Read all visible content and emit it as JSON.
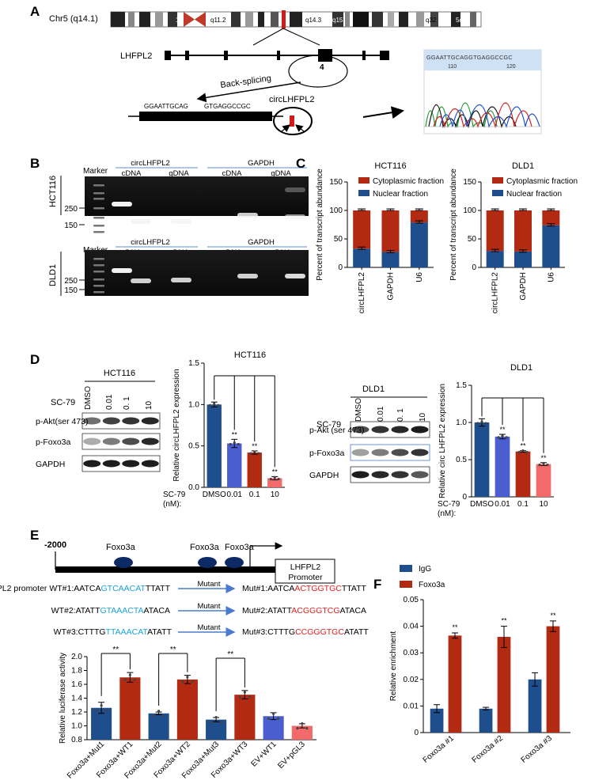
{
  "panels": {
    "A": {
      "letter": "A",
      "chromosome_label": "Chr5 (q14.1)",
      "band_labels": [
        "12",
        "q11.2",
        "q14.3",
        "q15",
        "q32",
        "5q34"
      ],
      "gene_label": "LHFPL2",
      "exon_label": "4",
      "back_splicing_label": "Back-splicing",
      "junction_left_seq": "GGAATTGCAG",
      "junction_right_seq": "GTGAGGCCGC",
      "circ_label": "circLHFPL2",
      "sanger_seq": "GGAATTGCAGGTGAGGCCGC",
      "sanger_ticks": [
        "110",
        "120"
      ]
    },
    "B": {
      "letter": "B",
      "marker_label": "Marker",
      "group_labels": [
        "circLHFPL2",
        "GAPDH"
      ],
      "template_labels": [
        "cDNA",
        "gDNA"
      ],
      "cell_lines": [
        "HCT116",
        "DLD1"
      ],
      "size_labels": [
        "250",
        "150"
      ]
    },
    "C": {
      "letter": "C",
      "ylabel": "Percent of transcript abundance",
      "legend": [
        "Cytoplasmic fraction",
        "Nuclear fraction"
      ]
    },
    "D": {
      "letter": "D",
      "sc79_label": "SC-79",
      "blot_doses": [
        "DMSO",
        "0.01",
        "0. 1",
        "10"
      ],
      "dlddoses": [
        "DMSO",
        "0.01",
        "0. 1",
        "10"
      ],
      "proteins": [
        "p-Akt(ser 473)",
        "p-Foxo3a",
        "GAPDH"
      ],
      "proteins_dld1": [
        "p-Akt (ser 473)",
        "p-Foxo3a",
        "GAPDH"
      ],
      "blot_titles": [
        "HCT116",
        "DLD1"
      ],
      "sc79_axis_label": "SC-79",
      "nm_label": "(nM):"
    },
    "E": {
      "letter": "E",
      "promoter_start": "-2000",
      "tf_label": "Foxo3a",
      "promoter_box": [
        "LHFPL2",
        "Promoter"
      ],
      "mutant_label": "Mutant",
      "sites": [
        {
          "wt_prefix": "LHFPL2 promoter WT#1:AATCA",
          "wt_core": "GTCAACAT",
          "wt_suffix": "TTATT",
          "mut_prefix": "Mut#1:AATCA",
          "mut_core": "ACTGGTGC",
          "mut_suffix": "TTATT"
        },
        {
          "wt_prefix": "WT#2:ATATT",
          "wt_core": "GTAAACTA",
          "wt_suffix": "ATACA",
          "mut_prefix": "Mut#2:ATATT",
          "mut_core": "ACGGGTCG",
          "mut_suffix": "ATACA"
        },
        {
          "wt_prefix": "WT#3:CTTTG",
          "wt_core": "TTAAACAT",
          "wt_suffix": "ATATT",
          "mut_prefix": "Mut#3:CTTTG",
          "mut_core": "CCGGGTGC",
          "mut_suffix": "ATATT"
        }
      ]
    },
    "F": {
      "letter": "F"
    }
  },
  "colors": {
    "navy": "#1f4e8c",
    "red": "#b22a12",
    "blue_mid": "#4a5ed0",
    "red_light": "#f26a6a",
    "cyan": "#1aa3d9",
    "mut_red": "#e02020",
    "legend_line": "#5b8fd6"
  },
  "chart_data": [
    {
      "id": "C-HCT116",
      "type": "bar",
      "title": "HCT116",
      "ylabel": "Percent of transcript abundance",
      "categories": [
        "circLHFPL2",
        "GAPDH",
        "U6"
      ],
      "series": [
        {
          "name": "Nuclear fraction",
          "values": [
            33,
            27,
            79
          ]
        },
        {
          "name": "Cytoplasmic fraction",
          "values": [
            67,
            73,
            21
          ]
        }
      ],
      "ylim": [
        0,
        150
      ],
      "yticks": [
        "0",
        "50",
        "100",
        "150"
      ],
      "legend": "top-right"
    },
    {
      "id": "C-DLD1",
      "type": "bar",
      "title": "DLD1",
      "ylabel": "Percent of transcript abundance",
      "categories": [
        "circLHFPL2",
        "GAPDH",
        "U6"
      ],
      "series": [
        {
          "name": "Nuclear fraction",
          "values": [
            29,
            28,
            74
          ]
        },
        {
          "name": "Cytoplasmic fraction",
          "values": [
            71,
            72,
            26
          ]
        }
      ],
      "ylim": [
        0,
        150
      ],
      "yticks": [
        "0",
        "50",
        "100",
        "150"
      ],
      "legend": "top-right"
    },
    {
      "id": "D-HCT116",
      "type": "bar",
      "title": "HCT116",
      "ylabel": "Relative circLHFPL2 expression",
      "categories": [
        "DMSO",
        "0.01",
        "0.1",
        "10"
      ],
      "values": [
        1.0,
        0.53,
        0.42,
        0.11
      ],
      "errors": [
        0.03,
        0.05,
        0.02,
        0.02
      ],
      "significance": [
        "",
        "**",
        "**",
        "**"
      ],
      "ylim": [
        0,
        1.5
      ],
      "yticks": [
        "0.0",
        "0.5",
        "1.0",
        "1.5"
      ]
    },
    {
      "id": "D-DLD1",
      "type": "bar",
      "title": "DLD1",
      "ylabel": "Relative circ LHFPL2 expression",
      "categories": [
        "DMSO",
        "0.01",
        "0.1",
        "10"
      ],
      "values": [
        1.0,
        0.81,
        0.61,
        0.44
      ],
      "errors": [
        0.05,
        0.03,
        0.01,
        0.02
      ],
      "significance": [
        "",
        "**",
        "**",
        "**"
      ],
      "ylim": [
        0,
        1.5
      ],
      "yticks": [
        "0",
        "0.5",
        "1.0",
        "1.5"
      ]
    },
    {
      "id": "E-luc",
      "type": "bar",
      "ylabel": "Relative luciferase activity",
      "categories": [
        "Foxo3a+Mut1",
        "Foxo3a+WT1",
        "Foxo3a+Mut2",
        "Foxo3a+WT2",
        "Foxo3a+Mut3",
        "Foxo3a+WT3",
        "EV+WT1",
        "EV+pGL3"
      ],
      "values": [
        1.26,
        1.7,
        1.18,
        1.67,
        1.09,
        1.45,
        1.14,
        1.0
      ],
      "errors": [
        0.08,
        0.07,
        0.02,
        0.06,
        0.03,
        0.06,
        0.05,
        0.03
      ],
      "significance_brackets": [
        [
          0,
          1,
          "**"
        ],
        [
          2,
          3,
          "**"
        ],
        [
          4,
          5,
          "**"
        ]
      ],
      "ylim": [
        0.8,
        2.0
      ],
      "yticks": [
        "0.8",
        "1.0",
        "1.2",
        "1.4",
        "1.6",
        "1.8",
        "2.0"
      ]
    },
    {
      "id": "F-chip",
      "type": "bar",
      "ylabel": "Relative enrichment",
      "categories": [
        "Foxo3a #1",
        "Foxo3a #2",
        "Foxo3a #3"
      ],
      "series": [
        {
          "name": "IgG",
          "values": [
            0.009,
            0.009,
            0.02
          ],
          "errors": [
            0.0015,
            0.0005,
            0.0025
          ]
        },
        {
          "name": "Foxo3a",
          "values": [
            0.0365,
            0.036,
            0.04
          ],
          "errors": [
            0.001,
            0.004,
            0.002
          ]
        }
      ],
      "significance": [
        "**",
        "**",
        "**"
      ],
      "ylim": [
        0,
        0.05
      ],
      "yticks": [
        "0",
        "0.01",
        "0.02",
        "0.03",
        "0.04",
        "0.05"
      ],
      "legend": "top-left"
    }
  ]
}
